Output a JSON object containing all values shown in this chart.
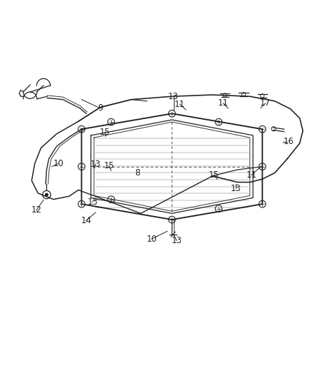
{
  "background_color": "#ffffff",
  "fig_width": 4.39,
  "fig_height": 5.33,
  "dpi": 100,
  "line_color": "#222222",
  "label_fontsize": 8.5,
  "line_width": 0.9
}
